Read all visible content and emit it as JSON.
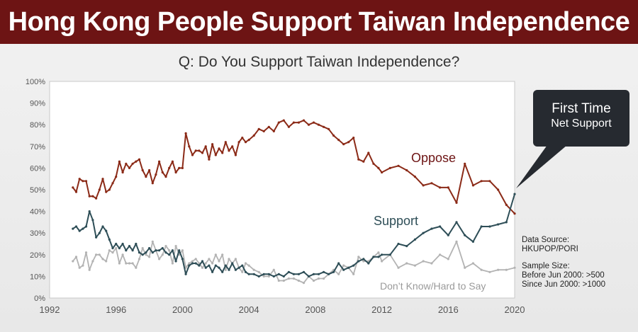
{
  "banner": {
    "title": "Hong Kong People Support Taiwan Independence"
  },
  "chart_data": {
    "type": "line",
    "title": "Q: Do You Support Taiwan Independence?",
    "xlim": [
      1992,
      2020
    ],
    "ylim": [
      0,
      100
    ],
    "x_ticks": [
      "1992",
      "1996",
      "2000",
      "2004",
      "2008",
      "2012",
      "2016",
      "2020"
    ],
    "y_ticks": [
      "0%",
      "10%",
      "20%",
      "30%",
      "40%",
      "50%",
      "60%",
      "70%",
      "80%",
      "90%",
      "100%"
    ],
    "grid": false,
    "series": [
      {
        "name": "Oppose",
        "color": "#8b2a17",
        "x": [
          1993.4,
          1993.6,
          1993.8,
          1994.0,
          1994.2,
          1994.4,
          1994.6,
          1994.8,
          1995.0,
          1995.2,
          1995.4,
          1995.6,
          1995.8,
          1996.0,
          1996.2,
          1996.4,
          1996.6,
          1996.8,
          1997.0,
          1997.2,
          1997.4,
          1997.6,
          1997.8,
          1998.0,
          1998.2,
          1998.4,
          1998.6,
          1998.8,
          1999.0,
          1999.2,
          1999.4,
          1999.6,
          1999.8,
          2000.0,
          2000.2,
          2000.4,
          2000.6,
          2000.8,
          2001.0,
          2001.2,
          2001.4,
          2001.6,
          2001.8,
          2002.0,
          2002.2,
          2002.4,
          2002.6,
          2002.8,
          2003.0,
          2003.2,
          2003.4,
          2003.6,
          2003.8,
          2004.0,
          2004.3,
          2004.6,
          2004.9,
          2005.2,
          2005.5,
          2005.8,
          2006.1,
          2006.4,
          2006.7,
          2007.0,
          2007.3,
          2007.6,
          2007.9,
          2008.2,
          2008.5,
          2008.8,
          2009.1,
          2009.4,
          2009.7,
          2010.0,
          2010.3,
          2010.6,
          2010.9,
          2011.2,
          2011.5,
          2011.8,
          2012.0,
          2012.5,
          2013.0,
          2013.5,
          2014.0,
          2014.5,
          2015.0,
          2015.5,
          2016.0,
          2016.5,
          2017.0,
          2017.5,
          2018.0,
          2018.5,
          2019.0,
          2019.5,
          2020.0
        ],
        "values": [
          51,
          49,
          55,
          54,
          54,
          47,
          47,
          46,
          50,
          55,
          49,
          50,
          53,
          56,
          63,
          58,
          62,
          60,
          62,
          63,
          64,
          59,
          56,
          59,
          53,
          57,
          63,
          58,
          56,
          60,
          63,
          58,
          60,
          60,
          76,
          70,
          66,
          68,
          68,
          67,
          70,
          64,
          71,
          66,
          69,
          67,
          72,
          68,
          70,
          66,
          72,
          74,
          72,
          73,
          75,
          78,
          77,
          79,
          77,
          81,
          82,
          79,
          81,
          81,
          82,
          80,
          81,
          80,
          79,
          78,
          75,
          73,
          71,
          72,
          74,
          64,
          63,
          67,
          62,
          60,
          58,
          60,
          61,
          59,
          56,
          52,
          53,
          51,
          51,
          44,
          62,
          52,
          54,
          54,
          50,
          43,
          39
        ]
      },
      {
        "name": "Support",
        "color": "#2e4e57",
        "x": [
          1993.4,
          1993.6,
          1993.8,
          1994.0,
          1994.2,
          1994.4,
          1994.6,
          1994.8,
          1995.0,
          1995.2,
          1995.4,
          1995.6,
          1995.8,
          1996.0,
          1996.2,
          1996.4,
          1996.6,
          1996.8,
          1997.0,
          1997.2,
          1997.4,
          1997.6,
          1997.8,
          1998.0,
          1998.2,
          1998.4,
          1998.6,
          1998.8,
          1999.0,
          1999.2,
          1999.4,
          1999.6,
          1999.8,
          2000.0,
          2000.2,
          2000.4,
          2000.6,
          2000.8,
          2001.0,
          2001.2,
          2001.4,
          2001.6,
          2001.8,
          2002.0,
          2002.2,
          2002.4,
          2002.6,
          2002.8,
          2003.0,
          2003.2,
          2003.4,
          2003.6,
          2003.8,
          2004.0,
          2004.3,
          2004.6,
          2004.9,
          2005.2,
          2005.5,
          2005.8,
          2006.1,
          2006.4,
          2006.7,
          2007.0,
          2007.3,
          2007.6,
          2007.9,
          2008.2,
          2008.5,
          2008.8,
          2009.1,
          2009.4,
          2009.7,
          2010.0,
          2010.3,
          2010.6,
          2010.9,
          2011.2,
          2011.5,
          2011.8,
          2012.0,
          2012.5,
          2013.0,
          2013.5,
          2014.0,
          2014.5,
          2015.0,
          2015.5,
          2016.0,
          2016.5,
          2017.0,
          2017.5,
          2018.0,
          2018.5,
          2019.0,
          2019.5,
          2020.0
        ],
        "values": [
          32,
          33,
          31,
          32,
          33,
          40,
          36,
          28,
          30,
          33,
          31,
          27,
          23,
          25,
          23,
          25,
          22,
          24,
          22,
          25,
          21,
          20,
          21,
          23,
          21,
          22,
          22,
          23,
          21,
          20,
          22,
          17,
          22,
          18,
          11,
          15,
          16,
          16,
          15,
          17,
          14,
          15,
          12,
          15,
          14,
          12,
          15,
          13,
          16,
          13,
          14,
          15,
          12,
          11,
          11,
          10,
          11,
          11,
          10,
          11,
          10,
          12,
          11,
          11,
          12,
          10,
          11,
          11,
          12,
          11,
          12,
          16,
          13,
          14,
          15,
          17,
          18,
          16,
          19,
          19,
          20,
          20,
          25,
          24,
          27,
          30,
          32,
          33,
          29,
          35,
          29,
          26,
          33,
          33,
          34,
          35,
          48
        ]
      },
      {
        "name": "Don’t Know/Hard to Say",
        "color": "#b3b3b3",
        "x": [
          1993.4,
          1993.6,
          1993.8,
          1994.0,
          1994.2,
          1994.4,
          1994.6,
          1994.8,
          1995.0,
          1995.2,
          1995.4,
          1995.6,
          1995.8,
          1996.0,
          1996.2,
          1996.4,
          1996.6,
          1996.8,
          1997.0,
          1997.2,
          1997.4,
          1997.6,
          1997.8,
          1998.0,
          1998.2,
          1998.4,
          1998.6,
          1998.8,
          1999.0,
          1999.2,
          1999.4,
          1999.6,
          1999.8,
          2000.0,
          2000.2,
          2000.4,
          2000.6,
          2000.8,
          2001.0,
          2001.2,
          2001.4,
          2001.6,
          2001.8,
          2002.0,
          2002.2,
          2002.4,
          2002.6,
          2002.8,
          2003.0,
          2003.2,
          2003.4,
          2003.6,
          2003.8,
          2004.0,
          2004.3,
          2004.6,
          2004.9,
          2005.2,
          2005.5,
          2005.8,
          2006.1,
          2006.4,
          2006.7,
          2007.0,
          2007.3,
          2007.6,
          2007.9,
          2008.2,
          2008.5,
          2008.8,
          2009.1,
          2009.4,
          2009.7,
          2010.0,
          2010.3,
          2010.6,
          2010.9,
          2011.2,
          2011.5,
          2011.8,
          2012.0,
          2012.5,
          2013.0,
          2013.5,
          2014.0,
          2014.5,
          2015.0,
          2015.5,
          2016.0,
          2016.5,
          2017.0,
          2017.5,
          2018.0,
          2018.5,
          2019.0,
          2019.5,
          2020.0
        ],
        "values": [
          17,
          19,
          14,
          15,
          21,
          13,
          17,
          20,
          20,
          18,
          17,
          22,
          21,
          23,
          16,
          20,
          16,
          16,
          16,
          14,
          18,
          23,
          20,
          19,
          26,
          22,
          18,
          20,
          24,
          22,
          16,
          24,
          20,
          22,
          14,
          16,
          17,
          18,
          16,
          14,
          16,
          18,
          16,
          20,
          17,
          20,
          13,
          18,
          16,
          18,
          14,
          12,
          16,
          15,
          13,
          12,
          10,
          10,
          13,
          8,
          8,
          9,
          9,
          8,
          7,
          10,
          8,
          9,
          9,
          11,
          13,
          11,
          15,
          14,
          11,
          19,
          17,
          17,
          19,
          21,
          17,
          20,
          14,
          16,
          15,
          17,
          16,
          20,
          18,
          26,
          14,
          16,
          13,
          12,
          13,
          13,
          14
        ]
      }
    ],
    "series_labels": {
      "oppose": "Oppose",
      "support": "Support",
      "dk": "Don’t Know/Hard to Say"
    }
  },
  "callout": {
    "line1": "First Time",
    "line2": "Net Support"
  },
  "notes": {
    "source_label": "Data Source:",
    "source_value": "HKUPOP/PORI",
    "sample_label": "Sample Size:",
    "sample_before": "Before Jun 2000: >500",
    "sample_since": "Since Jun 2000: >1000"
  }
}
